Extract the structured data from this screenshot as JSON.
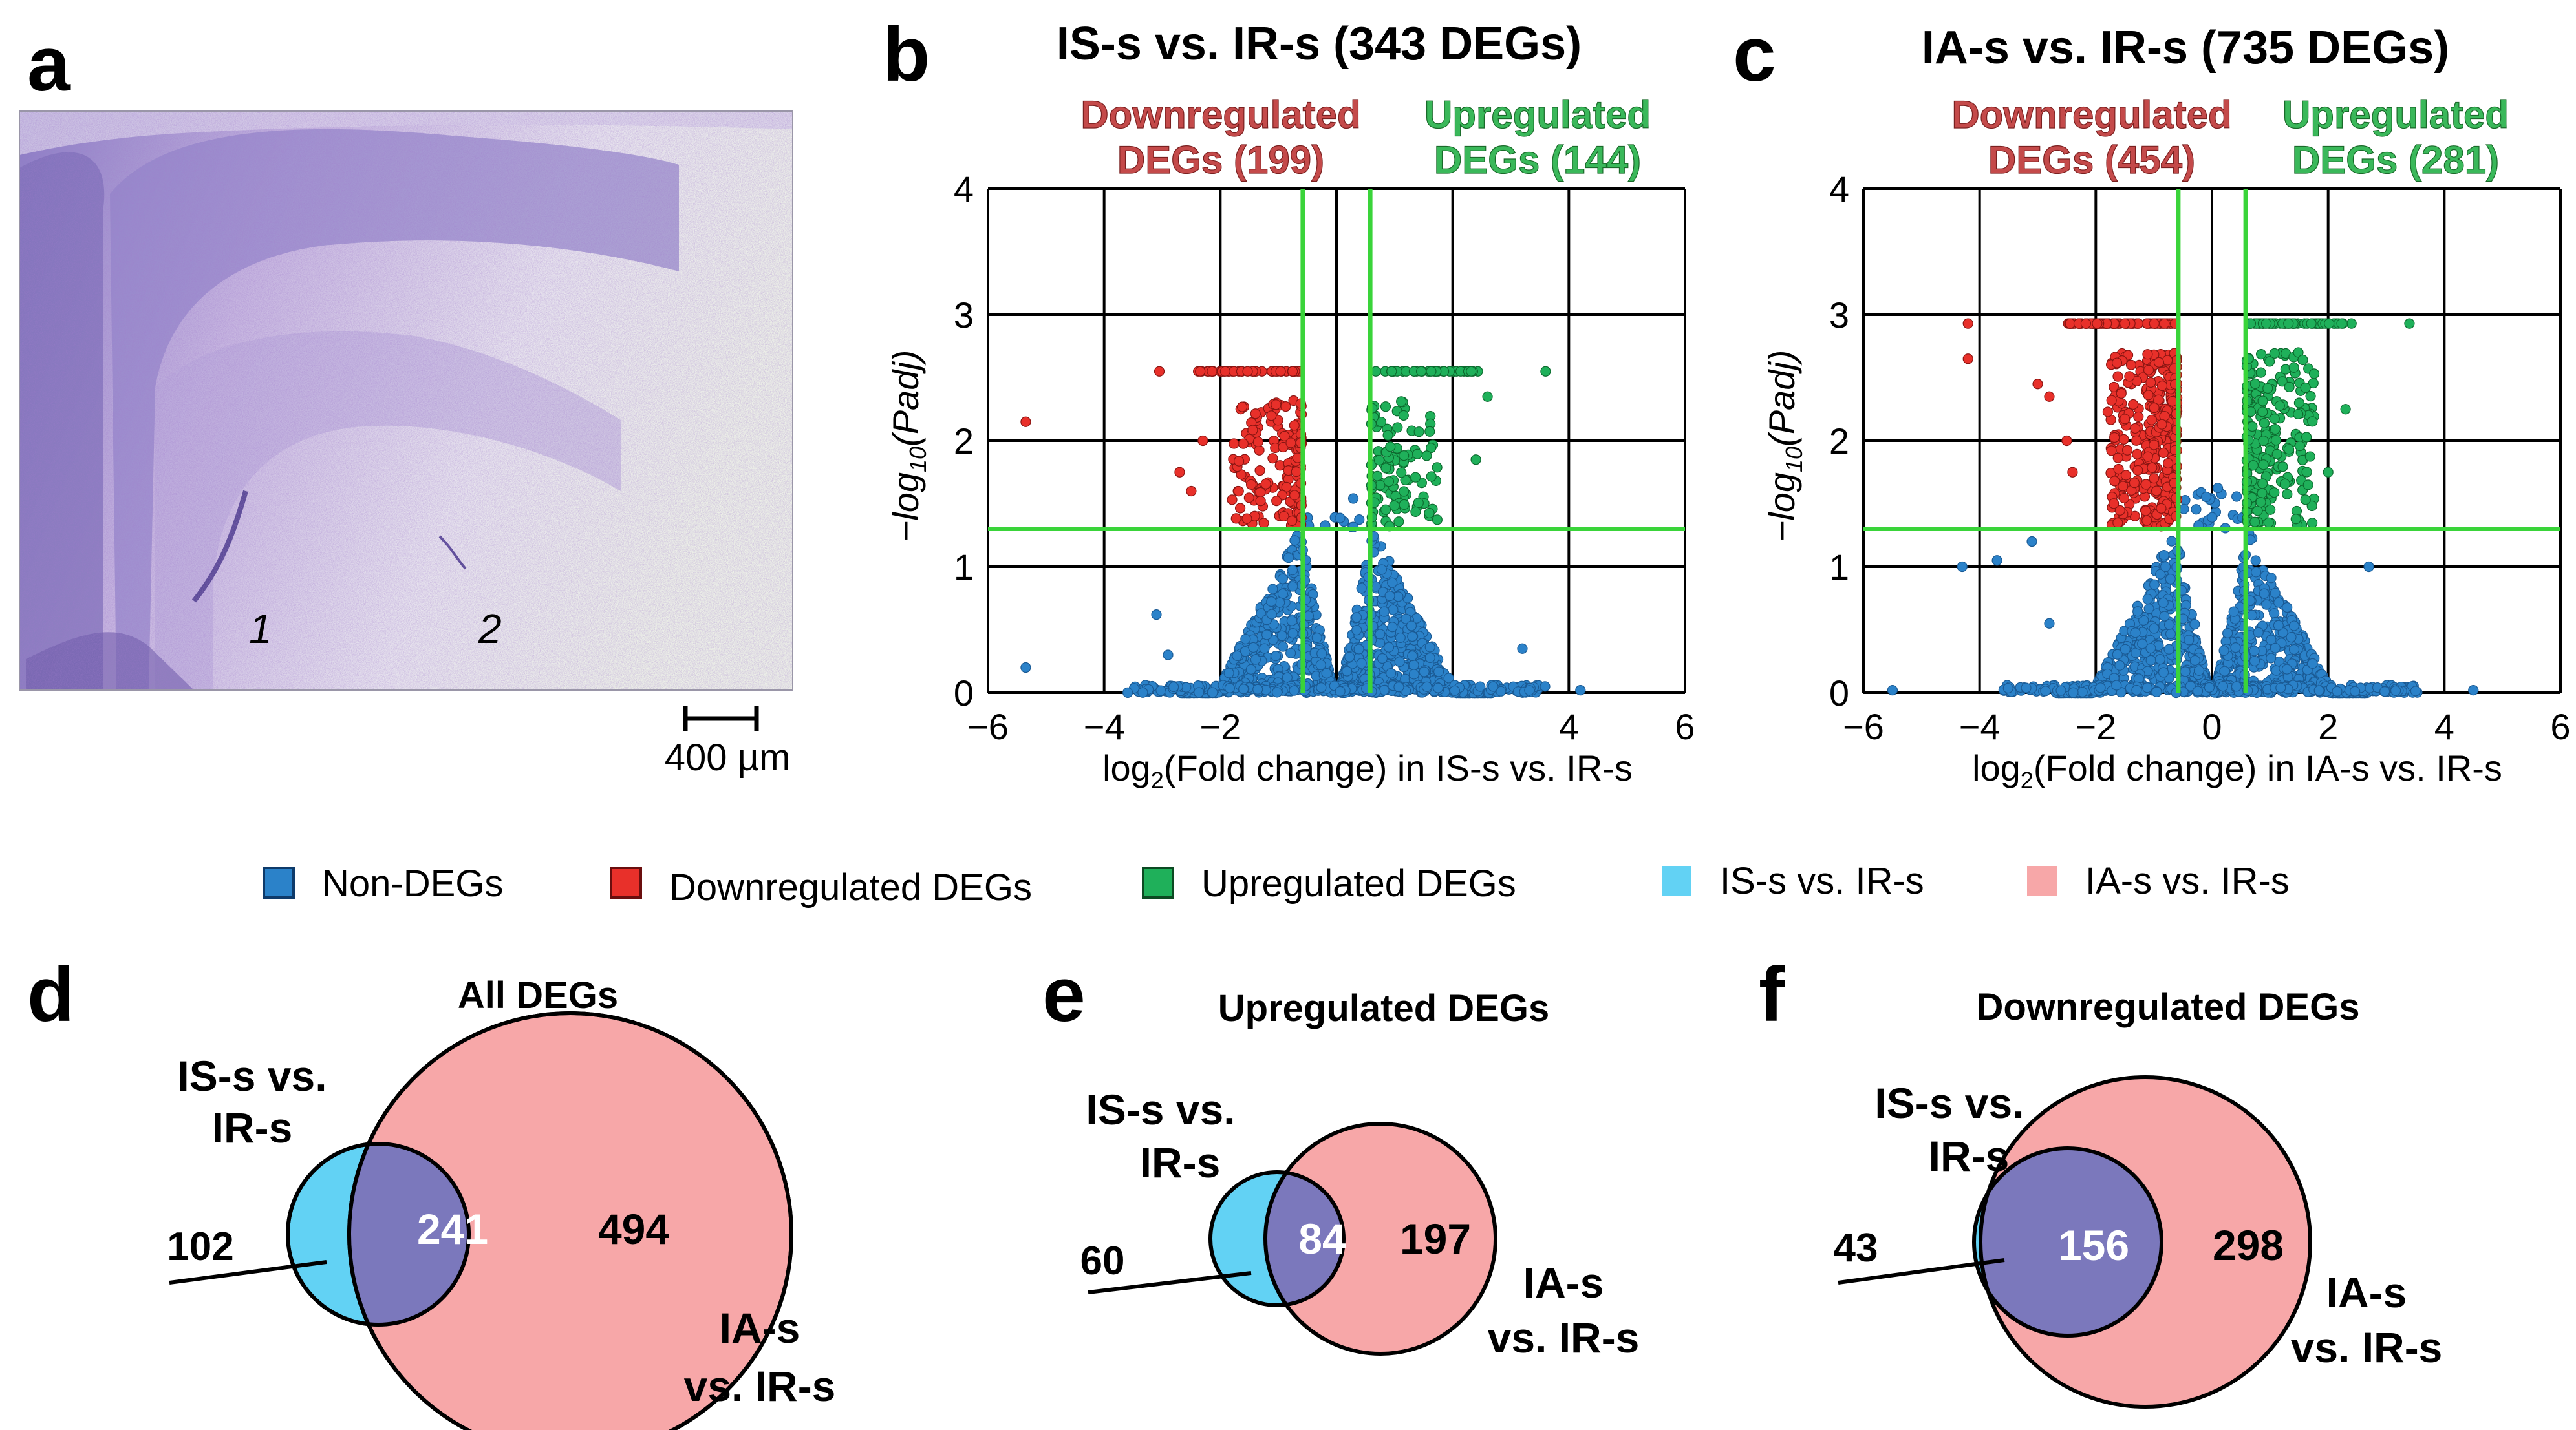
{
  "panel_letters": {
    "a": "a",
    "b": "b",
    "c": "c",
    "d": "d",
    "e": "e",
    "f": "f"
  },
  "micrograph": {
    "region_labels": [
      "1",
      "2"
    ],
    "scale_bar_label": "400 µm"
  },
  "colors": {
    "non_deg": "#2b82c9",
    "down": "#e8302a",
    "up": "#1fb05a",
    "threshold": "#3ad43a",
    "is_circle": "#62d2f4",
    "ia_circle": "#f7a7a8",
    "overlap": "#7b78bc",
    "down_title": "#b83a3a",
    "up_title": "#2aa84a"
  },
  "legend": [
    {
      "label": "Non-DEGs",
      "color": "#2b82c9"
    },
    {
      "label": "Downregulated DEGs",
      "color": "#e8302a"
    },
    {
      "label": "Upregulated DEGs",
      "color": "#1fb05a"
    },
    {
      "label": "IS-s vs. IR-s",
      "color": "#62d2f4"
    },
    {
      "label": "IA-s vs. IR-s",
      "color": "#f7a7a8"
    }
  ],
  "chart_data": [
    {
      "type": "scatter",
      "panel": "b",
      "title": "IS-s vs. IR-s (343 DEGs)",
      "down_label_1": "Downregulated",
      "down_label_2": "DEGs (199)",
      "up_label_1": "Upregulated",
      "up_label_2": "DEGs (144)",
      "xlabel_pre": "log",
      "xlabel_sub": "2",
      "xlabel_post": "(Fold change) in IS-s vs. IR-s",
      "ylabel_pre": "−log",
      "ylabel_sub": "10",
      "ylabel_post": "(Padj)",
      "xlim": [
        -6,
        6
      ],
      "ylim": [
        0,
        4
      ],
      "xticks": [
        "−6",
        "−4",
        "−2",
        "",
        "",
        "4",
        "6"
      ],
      "yticks": [
        "0",
        "1",
        "2",
        "3",
        "4"
      ],
      "fc_threshold": 0.58,
      "padj_threshold": 1.3,
      "sat_y": 2.55,
      "down_count": 199,
      "up_count": 144,
      "down_outliers": [
        [
          -5.35,
          2.15
        ],
        [
          -3.05,
          2.55
        ],
        [
          -2.7,
          1.75
        ],
        [
          -2.5,
          1.6
        ],
        [
          -2.3,
          2.0
        ]
      ],
      "up_outliers": [
        [
          3.6,
          2.55
        ],
        [
          2.6,
          2.35
        ],
        [
          2.4,
          1.85
        ]
      ],
      "non_outliers": [
        [
          -5.35,
          0.2
        ],
        [
          -3.1,
          0.62
        ],
        [
          -2.9,
          0.3
        ],
        [
          3.2,
          0.35
        ],
        [
          4.2,
          0.02
        ]
      ],
      "seed": 11
    },
    {
      "type": "scatter",
      "panel": "c",
      "title": "IA-s vs. IR-s (735 DEGs)",
      "down_label_1": "Downregulated",
      "down_label_2": "DEGs (454)",
      "up_label_1": "Upregulated",
      "up_label_2": "DEGs (281)",
      "xlabel_pre": "log",
      "xlabel_sub": "2",
      "xlabel_post": "(Fold change) in IA-s vs. IR-s",
      "ylabel_pre": "−log",
      "ylabel_sub": "10",
      "ylabel_post": "(Padj)",
      "xlim": [
        -6,
        6
      ],
      "ylim": [
        0,
        4
      ],
      "xticks": [
        "−6",
        "−4",
        "−2",
        "0",
        "2",
        "4",
        "6"
      ],
      "yticks": [
        "0",
        "1",
        "2",
        "3",
        "4"
      ],
      "fc_threshold": 0.58,
      "padj_threshold": 1.3,
      "sat_y": 2.93,
      "down_count": 454,
      "up_count": 281,
      "down_outliers": [
        [
          -4.2,
          2.93
        ],
        [
          -4.2,
          2.65
        ],
        [
          -3.0,
          2.45
        ],
        [
          -2.8,
          2.35
        ],
        [
          -2.5,
          2.0
        ],
        [
          -2.4,
          1.75
        ]
      ],
      "up_outliers": [
        [
          3.4,
          2.93
        ],
        [
          2.3,
          2.25
        ],
        [
          2.0,
          1.75
        ]
      ],
      "non_outliers": [
        [
          -4.3,
          1.0
        ],
        [
          -3.7,
          1.05
        ],
        [
          -3.1,
          1.2
        ],
        [
          -2.8,
          0.55
        ],
        [
          2.7,
          1.0
        ],
        [
          4.5,
          0.02
        ],
        [
          -5.5,
          0.02
        ]
      ],
      "seed": 23
    },
    {
      "type": "venn",
      "panel": "d",
      "title": "All DEGs",
      "set_a_label_1": "IS-s vs.",
      "set_a_label_2": "IR-s",
      "set_b_label_1": "IA-s",
      "set_b_label_2": "vs. IR-s",
      "only_a": 102,
      "overlap": 241,
      "only_b": 494
    },
    {
      "type": "venn",
      "panel": "e",
      "title": "Upregulated DEGs",
      "set_a_label_1": "IS-s vs.",
      "set_a_label_2": "IR-s",
      "set_b_label_1": "IA-s",
      "set_b_label_2": "vs. IR-s",
      "only_a": 60,
      "overlap": 84,
      "only_b": 197
    },
    {
      "type": "venn",
      "panel": "f",
      "title": "Downregulated DEGs",
      "set_a_label_1": "IS-s vs.",
      "set_a_label_2": "IR-s",
      "set_b_label_1": "IA-s",
      "set_b_label_2": "vs. IR-s",
      "only_a": 43,
      "overlap": 156,
      "only_b": 298
    }
  ]
}
